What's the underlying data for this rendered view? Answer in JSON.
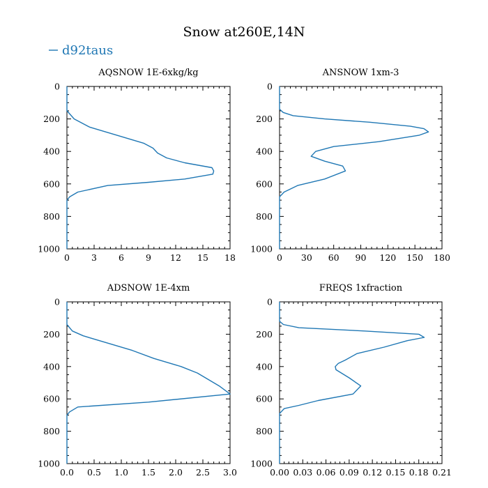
{
  "figure": {
    "title": "Snow at260E,14N",
    "legend_label": "d92taus",
    "legend_color": "#1f77b4"
  },
  "chart_data": [
    {
      "type": "line",
      "title": "AQSNOW  1E-6xkg/kg",
      "series": [
        {
          "name": "d92taus",
          "x": [
            0,
            0,
            0.8,
            2.5,
            5.5,
            8.5,
            9.5,
            10,
            11,
            13,
            16,
            16.2,
            16.1,
            13,
            9,
            4.5,
            1.2,
            0.3,
            0,
            0
          ],
          "y": [
            0,
            150,
            200,
            250,
            300,
            350,
            380,
            410,
            440,
            470,
            500,
            520,
            540,
            570,
            590,
            610,
            650,
            680,
            700,
            1000
          ]
        }
      ],
      "xticks": [
        "0",
        "3",
        "6",
        "9",
        "12",
        "15",
        "18"
      ],
      "xlim": [
        0,
        18
      ],
      "yticks": [
        "0",
        "200",
        "400",
        "600",
        "800",
        "1000"
      ],
      "ylim": [
        0,
        1000
      ]
    },
    {
      "type": "line",
      "title": "ANSNOW  1xm-3",
      "series": [
        {
          "name": "d92taus",
          "x": [
            0,
            0,
            4,
            15,
            50,
            100,
            145,
            160,
            165,
            155,
            110,
            60,
            40,
            35,
            50,
            70,
            73,
            50,
            20,
            5,
            0,
            0
          ],
          "y": [
            0,
            140,
            160,
            180,
            200,
            220,
            245,
            260,
            280,
            300,
            340,
            370,
            400,
            430,
            460,
            490,
            520,
            570,
            610,
            650,
            680,
            1000
          ]
        }
      ],
      "xticks": [
        "0",
        "30",
        "60",
        "90",
        "120",
        "150",
        "180"
      ],
      "xlim": [
        0,
        180
      ],
      "yticks": [
        "0",
        "200",
        "400",
        "600",
        "800",
        "1000"
      ],
      "ylim": [
        0,
        1000
      ]
    },
    {
      "type": "line",
      "title": "ADSNOW  1E-4xm",
      "series": [
        {
          "name": "d92taus",
          "x": [
            0,
            0,
            0.1,
            0.3,
            0.6,
            0.8,
            1.2,
            1.6,
            2.1,
            2.4,
            2.6,
            2.8,
            3.0,
            1.5,
            0.2,
            0.05,
            0,
            0
          ],
          "y": [
            0,
            140,
            180,
            210,
            240,
            260,
            300,
            350,
            400,
            440,
            480,
            520,
            570,
            620,
            650,
            680,
            700,
            1000
          ]
        }
      ],
      "xticks": [
        "0.0",
        "0.5",
        "1.0",
        "1.5",
        "2.0",
        "2.5",
        "3.0"
      ],
      "xlim": [
        0,
        3
      ],
      "yticks": [
        "0",
        "200",
        "400",
        "600",
        "800",
        "1000"
      ],
      "ylim": [
        0,
        1000
      ]
    },
    {
      "type": "line",
      "title": "FREQS  1xfraction",
      "series": [
        {
          "name": "d92taus",
          "x": [
            0,
            0,
            0.005,
            0.025,
            0.11,
            0.18,
            0.187,
            0.165,
            0.135,
            0.1,
            0.085,
            0.076,
            0.072,
            0.073,
            0.09,
            0.105,
            0.095,
            0.05,
            0.025,
            0.006,
            0,
            0
          ],
          "y": [
            0,
            120,
            140,
            160,
            180,
            200,
            220,
            240,
            280,
            320,
            360,
            380,
            400,
            420,
            470,
            520,
            570,
            610,
            640,
            660,
            690,
            1000
          ]
        }
      ],
      "xticks": [
        "0.00",
        "0.03",
        "0.06",
        "0.09",
        "0.12",
        "0.15",
        "0.18",
        "0.21"
      ],
      "xlim": [
        0,
        0.21
      ],
      "yticks": [
        "0",
        "200",
        "400",
        "600",
        "800",
        "1000"
      ],
      "ylim": [
        0,
        1000
      ]
    }
  ]
}
